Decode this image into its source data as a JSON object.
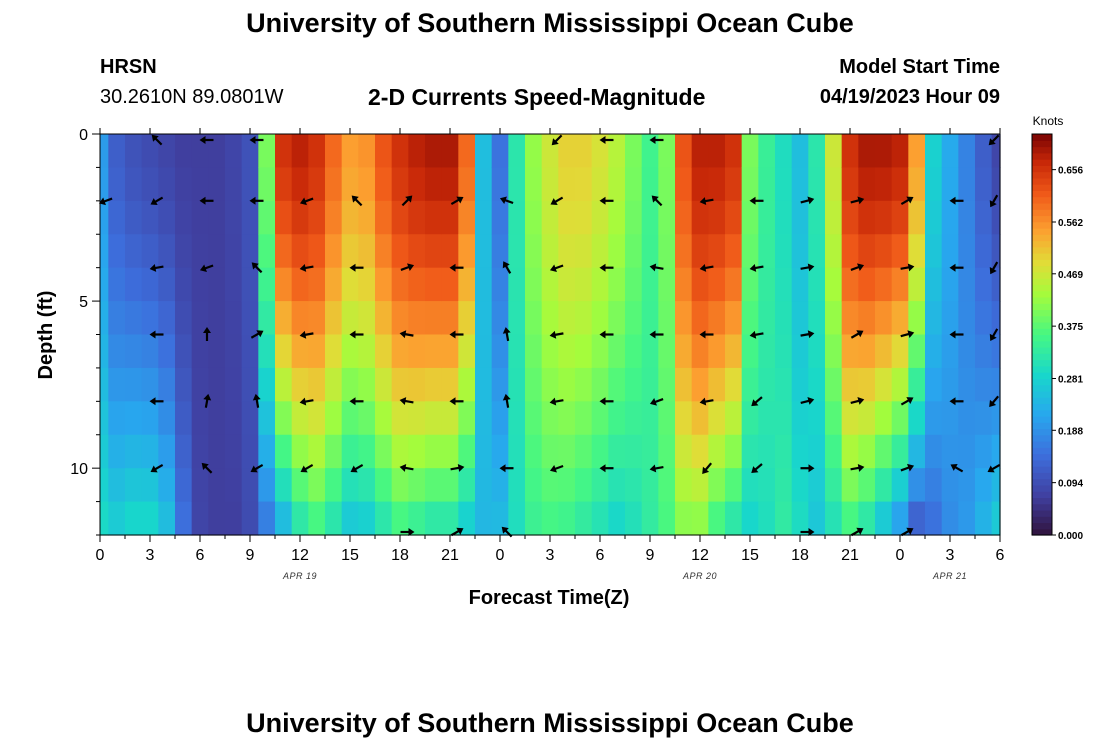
{
  "title": "University of Southern Mississippi Ocean Cube",
  "footer_title": "University of Southern Mississippi Ocean Cube",
  "station": {
    "name": "HRSN",
    "coordinates": "30.2610N  89.0801W"
  },
  "subtitle": "2-D Currents Speed-Magnitude",
  "model_start": {
    "label": "Model Start Time",
    "value": "04/19/2023 Hour 09"
  },
  "chart_data": {
    "type": "heatmap",
    "title": "2-D Currents Speed-Magnitude",
    "xlabel": "Forecast Time(Z)",
    "ylabel": "Depth (ft)",
    "x_hours_range": [
      0,
      54
    ],
    "ylim": [
      0,
      12
    ],
    "x_tick_hours": [
      0,
      3,
      6,
      9,
      12,
      15,
      18,
      21,
      24,
      27,
      30,
      33,
      36,
      39,
      42,
      45,
      48,
      51,
      54
    ],
    "x_tick_labels": [
      "0",
      "3",
      "6",
      "9",
      "12",
      "15",
      "18",
      "21",
      "0",
      "3",
      "6",
      "9",
      "12",
      "15",
      "18",
      "21",
      "0",
      "3",
      "6"
    ],
    "y_ticks": [
      0,
      5,
      10
    ],
    "y_tick_labels": [
      "0",
      "5",
      "10"
    ],
    "date_labels": [
      {
        "text": "APR 19",
        "hour": 12
      },
      {
        "text": "APR 20",
        "hour": 36
      },
      {
        "text": "APR 21",
        "hour": 51
      }
    ],
    "colorbar": {
      "title": "Knots",
      "min": 0.0,
      "max": 0.72,
      "ticks": [
        0.0,
        0.094,
        0.188,
        0.281,
        0.375,
        0.469,
        0.562,
        0.656
      ],
      "tick_labels": [
        "0.000",
        "0.094",
        "0.188",
        "0.281",
        "0.375",
        "0.469",
        "0.562",
        "0.656"
      ]
    },
    "speed_profile_hours": [
      0,
      1,
      2,
      3,
      4,
      5,
      6,
      7,
      8,
      9,
      10,
      11,
      12,
      13,
      14,
      15,
      16,
      17,
      18,
      19,
      20,
      21,
      22,
      23,
      24,
      25,
      26,
      27,
      28,
      29,
      30,
      31,
      32,
      33,
      34,
      35,
      36,
      37,
      38,
      39,
      40,
      41,
      42,
      43,
      44,
      45,
      46,
      47,
      48,
      49,
      50,
      51,
      52,
      53,
      54
    ],
    "speed_surface": [
      0.2,
      0.12,
      0.1,
      0.09,
      0.08,
      0.07,
      0.07,
      0.07,
      0.08,
      0.1,
      0.4,
      0.66,
      0.68,
      0.66,
      0.6,
      0.55,
      0.56,
      0.62,
      0.66,
      0.68,
      0.69,
      0.69,
      0.6,
      0.25,
      0.15,
      0.32,
      0.42,
      0.47,
      0.5,
      0.5,
      0.48,
      0.45,
      0.4,
      0.35,
      0.4,
      0.62,
      0.68,
      0.68,
      0.66,
      0.4,
      0.34,
      0.3,
      0.25,
      0.32,
      0.47,
      0.66,
      0.69,
      0.69,
      0.68,
      0.55,
      0.28,
      0.22,
      0.17,
      0.12,
      0.08
    ],
    "speed_bottom": [
      0.3,
      0.28,
      0.3,
      0.3,
      0.26,
      0.15,
      0.08,
      0.07,
      0.07,
      0.09,
      0.15,
      0.22,
      0.3,
      0.34,
      0.3,
      0.25,
      0.26,
      0.3,
      0.34,
      0.32,
      0.3,
      0.3,
      0.26,
      0.24,
      0.25,
      0.3,
      0.34,
      0.35,
      0.34,
      0.32,
      0.3,
      0.28,
      0.3,
      0.33,
      0.36,
      0.4,
      0.4,
      0.34,
      0.3,
      0.28,
      0.3,
      0.33,
      0.3,
      0.26,
      0.3,
      0.34,
      0.3,
      0.24,
      0.18,
      0.1,
      0.14,
      0.18,
      0.2,
      0.24,
      0.28
    ],
    "vector_depths_ft": [
      0,
      2,
      4,
      6,
      8,
      10,
      12
    ],
    "vector_hours": [
      0,
      3,
      6,
      9,
      12,
      15,
      18,
      21,
      24,
      27,
      30,
      33,
      36,
      39,
      42,
      45,
      48,
      51,
      54
    ],
    "vector_dir_deg": [
      [
        null,
        135,
        180,
        180,
        null,
        null,
        null,
        null,
        null,
        225,
        180,
        180,
        null,
        null,
        null,
        null,
        null,
        null,
        225
      ],
      [
        200,
        210,
        180,
        180,
        200,
        135,
        45,
        30,
        160,
        210,
        180,
        135,
        190,
        180,
        15,
        15,
        30,
        180,
        240
      ],
      [
        null,
        190,
        200,
        135,
        190,
        180,
        20,
        180,
        120,
        200,
        180,
        170,
        190,
        190,
        10,
        20,
        10,
        180,
        240
      ],
      [
        null,
        180,
        90,
        30,
        190,
        180,
        170,
        180,
        100,
        190,
        180,
        180,
        180,
        190,
        10,
        30,
        15,
        180,
        240
      ],
      [
        null,
        180,
        80,
        100,
        190,
        180,
        170,
        180,
        100,
        190,
        180,
        200,
        190,
        220,
        15,
        15,
        30,
        180,
        230
      ],
      [
        null,
        210,
        135,
        210,
        210,
        210,
        170,
        10,
        180,
        200,
        180,
        190,
        230,
        220,
        0,
        10,
        20,
        150,
        210
      ],
      [
        null,
        null,
        null,
        null,
        null,
        null,
        0,
        30,
        135,
        null,
        null,
        null,
        null,
        null,
        0,
        30,
        30,
        null,
        null
      ]
    ]
  }
}
